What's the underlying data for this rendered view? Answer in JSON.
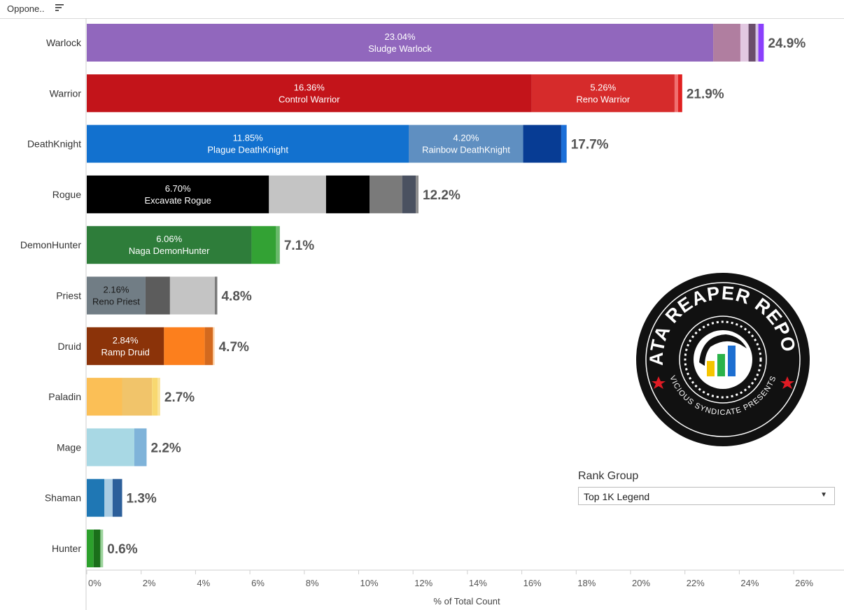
{
  "header": {
    "label": "Oppone.."
  },
  "filter": {
    "title": "Rank Group",
    "selected": "Top 1K Legend"
  },
  "logo": {
    "top_text": "DATA REAPER REPORT",
    "bottom_text": "VICIOUS SYNDICATE PRESENTS"
  },
  "chart_data": {
    "type": "bar",
    "orientation": "horizontal",
    "stacked": true,
    "xlabel": "% of Total Count",
    "xlim": [
      0,
      28
    ],
    "xticks": [
      "0%",
      "2%",
      "4%",
      "6%",
      "8%",
      "10%",
      "12%",
      "14%",
      "16%",
      "18%",
      "20%",
      "22%",
      "24%",
      "26%"
    ],
    "categories": [
      "Warlock",
      "Warrior",
      "DeathKnight",
      "Rogue",
      "DemonHunter",
      "Priest",
      "Druid",
      "Paladin",
      "Mage",
      "Shaman",
      "Hunter"
    ],
    "totals": [
      "24.9%",
      "21.9%",
      "17.7%",
      "12.2%",
      "7.1%",
      "4.8%",
      "4.7%",
      "2.7%",
      "2.2%",
      "1.3%",
      "0.6%"
    ],
    "rows": [
      {
        "segments": [
          {
            "value": 23.04,
            "color": "#9167bd",
            "label_pct": "23.04%",
            "label_name": "Sludge Warlock",
            "text_color": "#ffffff"
          },
          {
            "value": 1.0,
            "color": "#b07ea0"
          },
          {
            "value": 0.3,
            "color": "#e2c8e1"
          },
          {
            "value": 0.26,
            "color": "#6b4e6b"
          },
          {
            "value": 0.1,
            "color": "#d8c5e6"
          },
          {
            "value": 0.2,
            "color": "#8a3ffc"
          }
        ]
      },
      {
        "segments": [
          {
            "value": 16.36,
            "color": "#c3141a",
            "label_pct": "16.36%",
            "label_name": "Control Warrior",
            "text_color": "#ffffff"
          },
          {
            "value": 5.26,
            "color": "#d62b2b",
            "label_pct": "5.26%",
            "label_name": "Reno Warrior",
            "text_color": "#ffffff"
          },
          {
            "value": 0.13,
            "color": "#f06f6f"
          },
          {
            "value": 0.15,
            "color": "#e02020"
          }
        ]
      },
      {
        "segments": [
          {
            "value": 11.85,
            "color": "#1271cf",
            "label_pct": "11.85%",
            "label_name": "Plague DeathKnight",
            "text_color": "#ffffff"
          },
          {
            "value": 4.2,
            "color": "#5f8fc1",
            "label_pct": "4.20%",
            "label_name": "Rainbow DeathKnight",
            "text_color": "#ffffff"
          },
          {
            "value": 1.4,
            "color": "#073c94"
          },
          {
            "value": 0.2,
            "color": "#1b6fd8"
          }
        ]
      },
      {
        "segments": [
          {
            "value": 6.7,
            "color": "#000000",
            "label_pct": "6.70%",
            "label_name": "Excavate Rogue",
            "text_color": "#ffffff"
          },
          {
            "value": 2.1,
            "color": "#c4c4c4"
          },
          {
            "value": 1.6,
            "color": "#000000"
          },
          {
            "value": 1.2,
            "color": "#7a7a7a"
          },
          {
            "value": 0.5,
            "color": "#4a5160"
          },
          {
            "value": 0.1,
            "color": "#8c8c8c"
          }
        ]
      },
      {
        "segments": [
          {
            "value": 6.06,
            "color": "#2e7d3a",
            "label_pct": "6.06%",
            "label_name": "Naga DemonHunter",
            "text_color": "#ffffff"
          },
          {
            "value": 0.9,
            "color": "#33a234"
          },
          {
            "value": 0.14,
            "color": "#6ab96c"
          }
        ]
      },
      {
        "segments": [
          {
            "value": 2.16,
            "color": "#717d85",
            "label_pct": "2.16%",
            "label_name": "Reno Priest",
            "text_color": "#1a1a1a"
          },
          {
            "value": 0.9,
            "color": "#5c5c5c"
          },
          {
            "value": 1.65,
            "color": "#c4c4c4"
          },
          {
            "value": 0.09,
            "color": "#7a7a7a"
          }
        ]
      },
      {
        "segments": [
          {
            "value": 2.84,
            "color": "#8b3309",
            "label_pct": "2.84%",
            "label_name": "Ramp Druid",
            "text_color": "#ffffff"
          },
          {
            "value": 1.5,
            "color": "#fc7f1d"
          },
          {
            "value": 0.3,
            "color": "#d3691e"
          },
          {
            "value": 0.06,
            "color": "#fdd0a2"
          }
        ]
      },
      {
        "segments": [
          {
            "value": 1.3,
            "color": "#fbbf56"
          },
          {
            "value": 1.1,
            "color": "#f1c46a"
          },
          {
            "value": 0.2,
            "color": "#f8d870"
          },
          {
            "value": 0.1,
            "color": "#fae39a"
          }
        ]
      },
      {
        "segments": [
          {
            "value": 1.75,
            "color": "#a8d8e4"
          },
          {
            "value": 0.45,
            "color": "#7fb3d9"
          }
        ]
      },
      {
        "segments": [
          {
            "value": 0.65,
            "color": "#1f77b4"
          },
          {
            "value": 0.3,
            "color": "#a9cce3"
          },
          {
            "value": 0.35,
            "color": "#2c5f9a"
          }
        ]
      },
      {
        "segments": [
          {
            "value": 0.25,
            "color": "#2ca02c"
          },
          {
            "value": 0.25,
            "color": "#1a6f1a"
          },
          {
            "value": 0.1,
            "color": "#9bd39b"
          }
        ]
      }
    ]
  }
}
